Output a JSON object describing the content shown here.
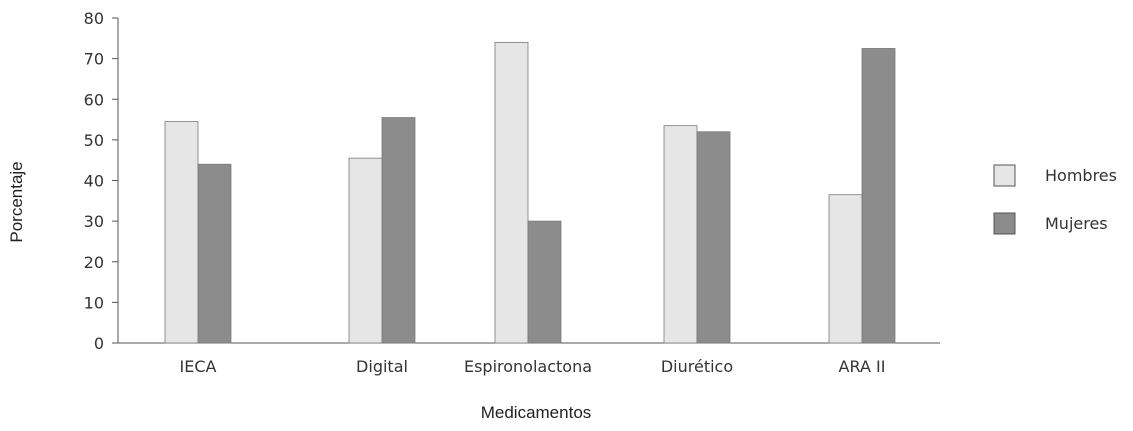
{
  "chart_data": {
    "type": "bar",
    "title": "",
    "xlabel": "Medicamentos",
    "ylabel": "Porcentaje",
    "categories": [
      "IECA",
      "Digital",
      "Espironolactona",
      "Diurético",
      "ARA II"
    ],
    "series": [
      {
        "name": "Hombres",
        "values": [
          54.5,
          45.5,
          74,
          53.5,
          36.5
        ],
        "color": "#e6e6e6"
      },
      {
        "name": "Mujeres",
        "values": [
          44,
          55.5,
          30,
          52,
          72.5
        ],
        "color": "#8c8c8c"
      }
    ],
    "ylim": [
      0,
      80
    ],
    "yticks": [
      0,
      10,
      20,
      30,
      40,
      50,
      60,
      70,
      80
    ],
    "grid": false,
    "legend_position": "right"
  }
}
